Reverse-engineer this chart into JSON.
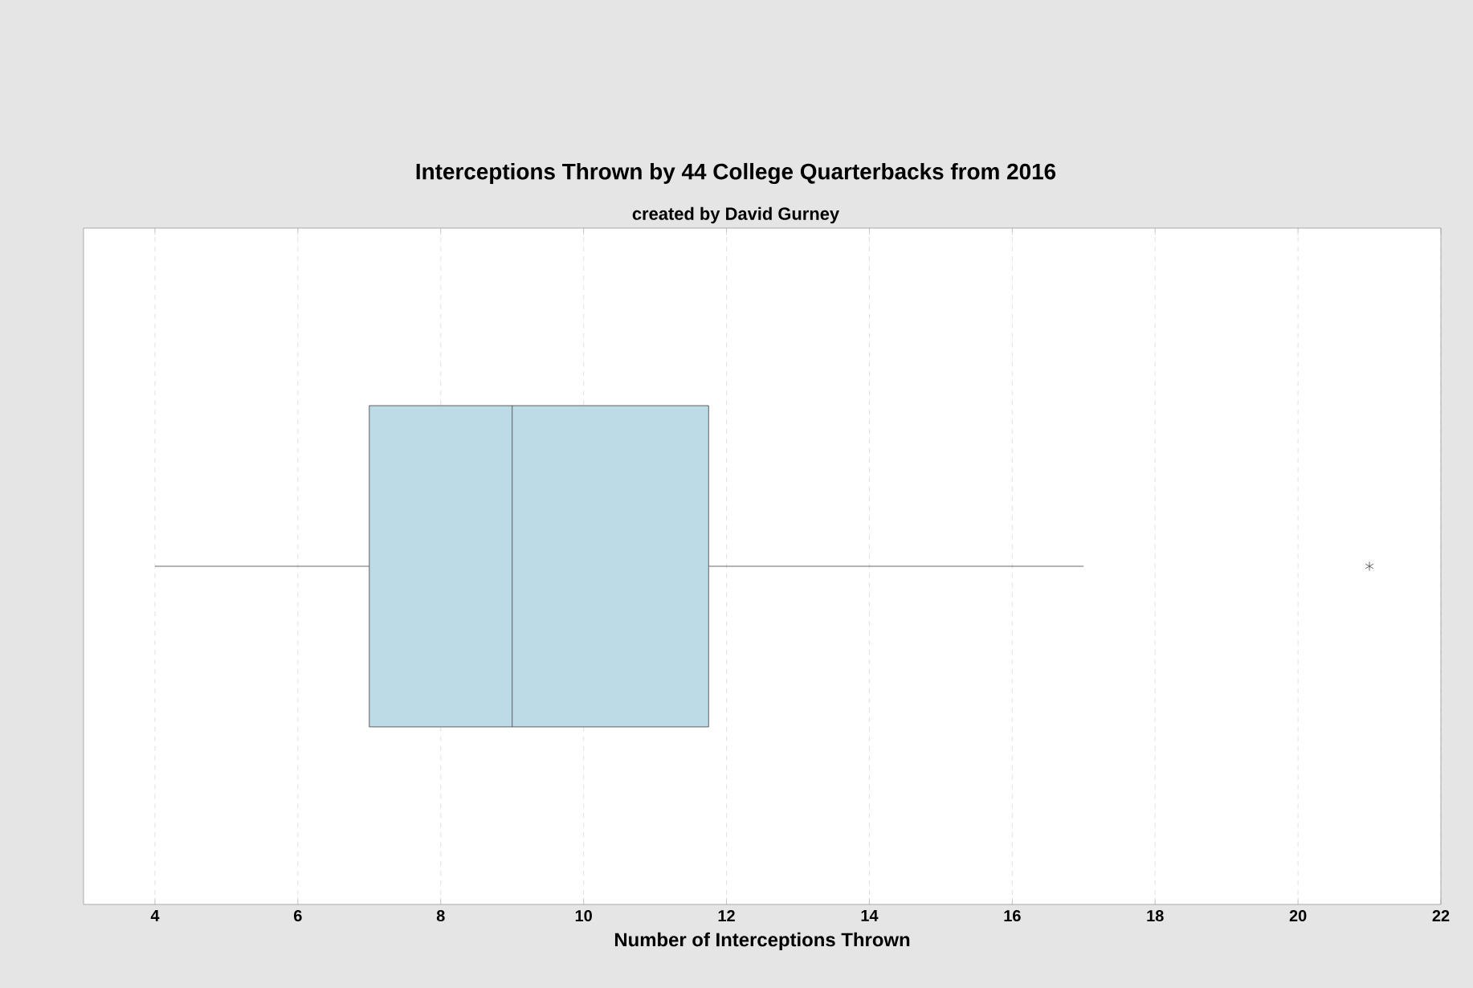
{
  "chart_data": {
    "type": "box",
    "title": "Interceptions Thrown by 44 College Quarterbacks from 2016",
    "subtitle": "created by David Gurney",
    "xlabel": "Number of Interceptions Thrown",
    "orientation": "horizontal",
    "categories": [
      null
    ],
    "boxes": [
      {
        "low": 4,
        "q1": 7,
        "median": 9,
        "q3": 11.75,
        "high": 17,
        "outliers": [
          21
        ]
      }
    ],
    "color": "#bddbe6",
    "marker": "star",
    "xlim": [
      3,
      22
    ],
    "xticks": [
      4,
      6,
      8,
      10,
      12,
      14,
      16,
      18,
      20,
      22
    ],
    "grid": "x"
  }
}
